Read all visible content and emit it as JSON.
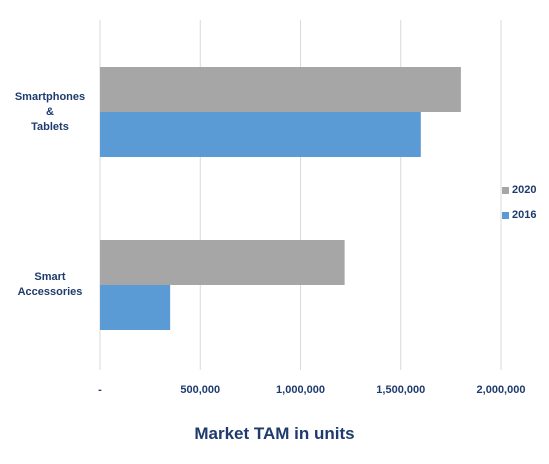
{
  "chart_data": {
    "type": "bar",
    "orientation": "horizontal",
    "categories": [
      "Smartphones\n&\nTablets",
      "Smart\nAccessories"
    ],
    "series": [
      {
        "name": "2020",
        "color": "#a6a6a6",
        "values": [
          1800000,
          1220000
        ]
      },
      {
        "name": "2016",
        "color": "#5b9bd5",
        "values": [
          1600000,
          350000
        ]
      }
    ],
    "xlabel": "Market TAM in units",
    "xlim": [
      0,
      2000000
    ],
    "xticks": [
      0,
      500000,
      1000000,
      1500000,
      2000000
    ],
    "xtick_labels": [
      "-",
      "500,000",
      "1,000,000",
      "1,500,000",
      "2,000,000"
    ],
    "grid": "vertical",
    "legend_position": "right"
  }
}
